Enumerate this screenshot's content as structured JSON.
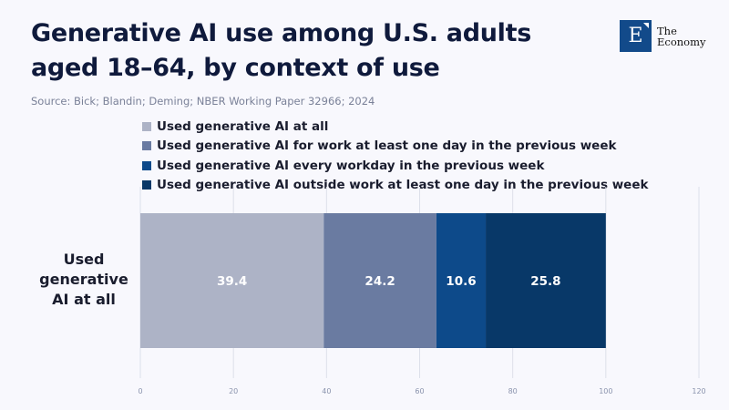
{
  "title": "Generative AI use among U.S. adults aged 18–64, by context of use",
  "source": "Source: Bick; Blandin; Deming; NBER Working Paper 32966; 2024",
  "logo": {
    "letter": "E",
    "line1": "The",
    "line2": "Economy"
  },
  "chart_data": {
    "type": "bar",
    "orientation": "horizontal",
    "stacked": true,
    "categories": [
      "Used generative AI at all"
    ],
    "category_label_lines": [
      "Used",
      "generative",
      "AI at all"
    ],
    "series": [
      {
        "name": "Used generative AI at all",
        "values": [
          39.4
        ],
        "color": "#adb3c6",
        "label": "39.4"
      },
      {
        "name": "Used generative AI for work at least one day in the previous week",
        "values": [
          24.2
        ],
        "color": "#6a7ba1",
        "label": "24.2"
      },
      {
        "name": "Used generative AI every workday in the previous week",
        "values": [
          10.6
        ],
        "color": "#0d4a8a",
        "label": "10.6"
      },
      {
        "name": "Used generative AI outside work at least one day in the previous week",
        "values": [
          25.8
        ],
        "color": "#083868",
        "label": "25.8"
      }
    ],
    "xlim": [
      0,
      120
    ],
    "xticks": [
      "0",
      "20",
      "40",
      "60",
      "80",
      "100",
      "120"
    ],
    "grid": true,
    "legend": "top-left"
  }
}
